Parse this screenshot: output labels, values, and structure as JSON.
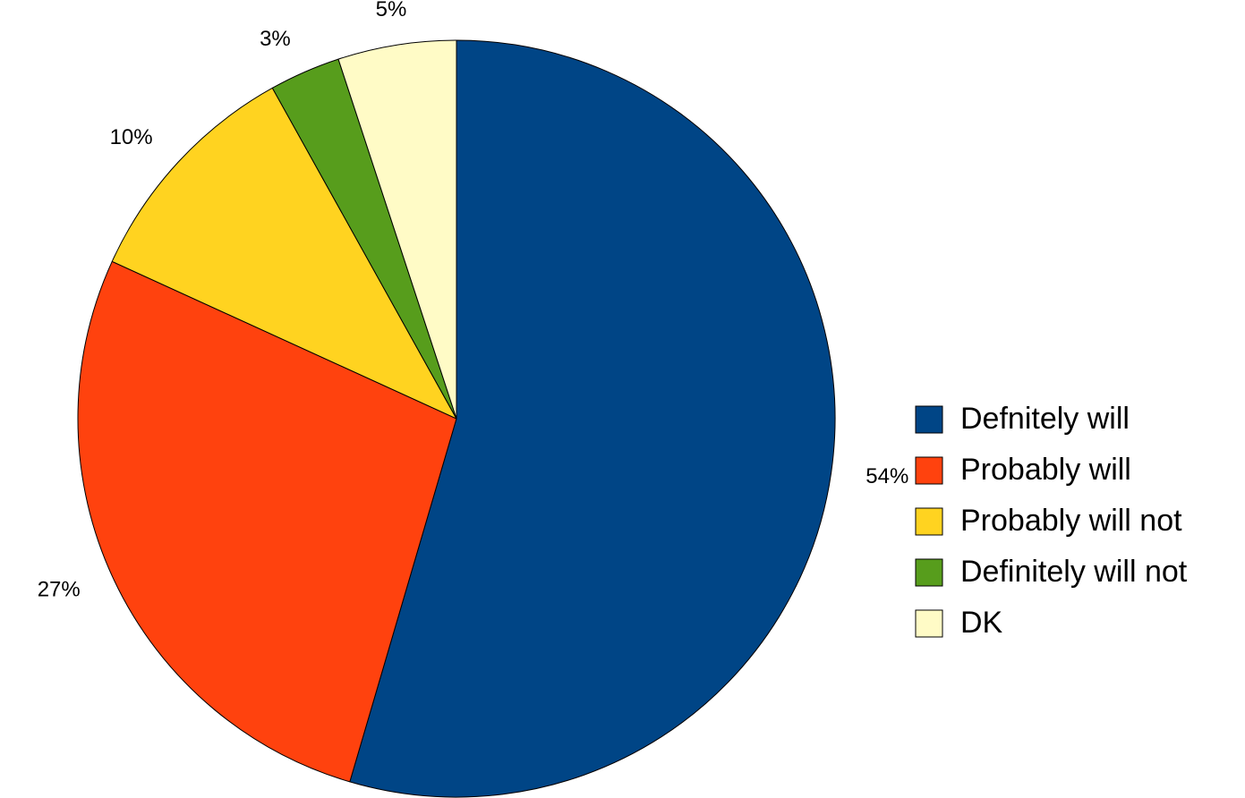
{
  "chart_data": {
    "type": "pie",
    "title": "",
    "legend_position": "right",
    "start_angle_deg": 0,
    "direction": "clockwise",
    "slices": [
      {
        "label": "Defnitely will",
        "value": 54,
        "display": "54%",
        "color": "#004586"
      },
      {
        "label": "Probably will",
        "value": 27,
        "display": "27%",
        "color": "#ff420e"
      },
      {
        "label": "Probably will not",
        "value": 10,
        "display": "10%",
        "color": "#ffd320"
      },
      {
        "label": "Definitely will not",
        "value": 3,
        "display": "3%",
        "color": "#579d1c"
      },
      {
        "label": "DK",
        "value": 5,
        "display": "5%",
        "color": "#fffbc6"
      }
    ],
    "legend_order": [
      0,
      1,
      2,
      3,
      4
    ]
  }
}
